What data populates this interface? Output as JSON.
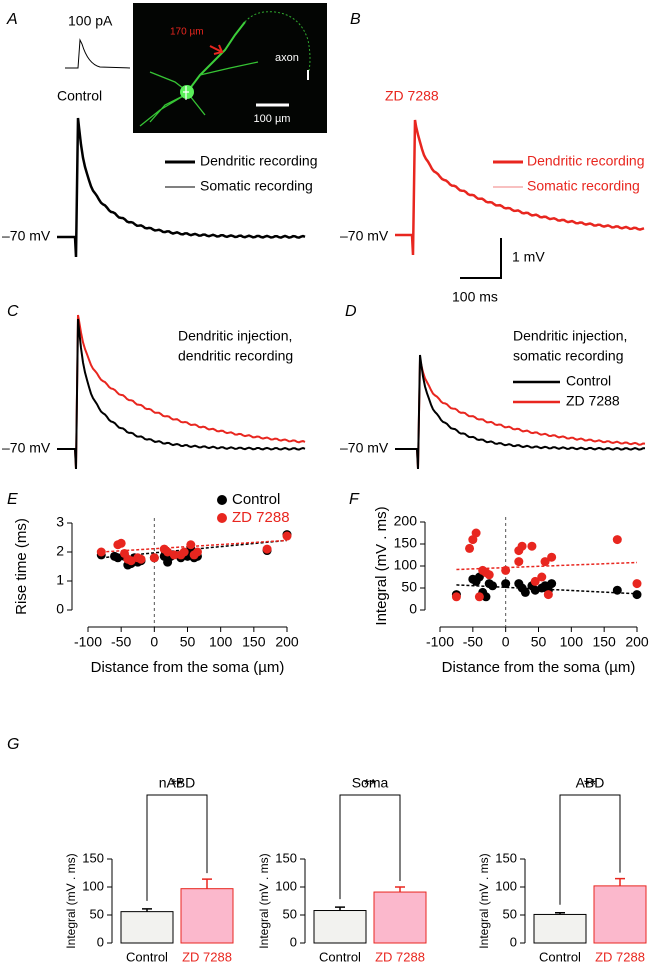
{
  "panel_labels": [
    "A",
    "B",
    "C",
    "D",
    "E",
    "F",
    "G"
  ],
  "traces": {
    "A": {
      "stimulus": "100 pA",
      "condition": "Control",
      "resting": "–70 mV",
      "legend": [
        "Dendritic recording",
        "Somatic recording"
      ],
      "image": {
        "distance": "170 µm",
        "axon": "axon",
        "scale": "100 µm"
      }
    },
    "B": {
      "condition": "ZD 7288",
      "resting": "–70 mV",
      "legend": [
        "Dendritic recording",
        "Somatic recording"
      ],
      "scale_y": "1 mV",
      "scale_x": "100 ms"
    },
    "C": {
      "title_lines": [
        "Dendritic injection,",
        "dendritic recording"
      ],
      "resting": "–70 mV"
    },
    "D": {
      "title_lines": [
        "Dendritic injection,",
        "somatic recording"
      ],
      "resting": "–70 mV",
      "legend": [
        "Control",
        "ZD 7288"
      ]
    }
  },
  "chart_data": [
    {
      "type": "scatter",
      "xlabel": "Distance from the soma (µm)",
      "ylabel": "Rise time (ms)",
      "xlim": [
        -100,
        200
      ],
      "xticks": [
        -100,
        -50,
        0,
        50,
        100,
        150,
        200
      ],
      "ylim": [
        0,
        3
      ],
      "yticks": [
        0,
        1,
        2,
        3
      ],
      "zero_line": true,
      "legend": "top-right",
      "series": [
        {
          "name": "Control",
          "color": "#000000",
          "x": [
            -80,
            -60,
            -55,
            -45,
            -40,
            -35,
            -30,
            -25,
            -20,
            0,
            15,
            20,
            25,
            40,
            50,
            55,
            60,
            65,
            170,
            200
          ],
          "values": [
            1.9,
            1.85,
            1.8,
            1.85,
            1.55,
            1.6,
            1.8,
            1.65,
            1.7,
            1.8,
            1.85,
            1.65,
            1.85,
            1.8,
            1.85,
            2.1,
            1.8,
            1.85,
            2.05,
            2.6
          ],
          "fit_x": [
            -80,
            200
          ],
          "fit_values": [
            1.8,
            2.4
          ]
        },
        {
          "name": "ZD 7288",
          "color": "#e8261f",
          "x": [
            -80,
            -55,
            -50,
            -45,
            -40,
            -35,
            -25,
            -20,
            0,
            15,
            20,
            30,
            40,
            45,
            55,
            60,
            65,
            170,
            200
          ],
          "values": [
            2.0,
            2.25,
            2.3,
            1.95,
            1.75,
            1.7,
            1.8,
            1.75,
            1.8,
            2.1,
            2.0,
            1.9,
            1.9,
            2.0,
            2.25,
            1.9,
            2.0,
            2.1,
            2.55
          ],
          "fit_x": [
            -80,
            200
          ],
          "fit_values": [
            2.0,
            2.4
          ]
        }
      ]
    },
    {
      "type": "scatter",
      "xlabel": "Distance from the soma (µm)",
      "ylabel": "Integral (mV . ms)",
      "xlim": [
        -100,
        200
      ],
      "xticks": [
        -100,
        -50,
        0,
        50,
        100,
        150,
        200
      ],
      "ylim": [
        0,
        200
      ],
      "yticks": [
        0,
        50,
        100,
        150,
        200
      ],
      "zero_line": true,
      "series": [
        {
          "name": "Control",
          "color": "#000000",
          "x": [
            -75,
            -50,
            -45,
            -40,
            -35,
            -30,
            -25,
            -20,
            0,
            20,
            25,
            30,
            40,
            45,
            55,
            60,
            65,
            70,
            170,
            200
          ],
          "values": [
            35,
            70,
            65,
            75,
            40,
            30,
            60,
            55,
            60,
            60,
            50,
            40,
            55,
            45,
            50,
            55,
            45,
            60,
            45,
            35
          ],
          "fit_x": [
            -75,
            200
          ],
          "fit_values": [
            57,
            37
          ]
        },
        {
          "name": "ZD 7288",
          "color": "#e8261f",
          "x": [
            -75,
            -55,
            -50,
            -45,
            -40,
            -35,
            -30,
            -25,
            0,
            20,
            20,
            25,
            40,
            45,
            55,
            60,
            65,
            70,
            170,
            200
          ],
          "values": [
            30,
            140,
            160,
            175,
            30,
            90,
            85,
            80,
            90,
            135,
            110,
            145,
            145,
            65,
            75,
            110,
            35,
            120,
            160,
            60
          ],
          "fit_x": [
            -75,
            200
          ],
          "fit_values": [
            92,
            108
          ]
        }
      ]
    },
    {
      "type": "bar",
      "title": "nABD",
      "ylabel": "Integral (mV . ms)",
      "categories": [
        "Control",
        "ZD 7288"
      ],
      "values": [
        56,
        97
      ],
      "errors": [
        5,
        17
      ],
      "colors": [
        "#f2f2ef",
        "#fbb8cc"
      ],
      "edge_colors": [
        "#000000",
        "#e8261f"
      ],
      "label_colors": [
        "#000000",
        "#e8261f"
      ],
      "ylim": [
        0,
        150
      ],
      "yticks": [
        0,
        50,
        100,
        150
      ],
      "annotation": "**"
    },
    {
      "type": "bar",
      "title": "Soma",
      "ylabel": "Integral (mV . ms)",
      "categories": [
        "Control",
        "ZD 7288"
      ],
      "values": [
        58,
        91
      ],
      "errors": [
        6,
        9
      ],
      "colors": [
        "#f2f2ef",
        "#fbb8cc"
      ],
      "edge_colors": [
        "#000000",
        "#e8261f"
      ],
      "label_colors": [
        "#000000",
        "#e8261f"
      ],
      "ylim": [
        0,
        150
      ],
      "yticks": [
        0,
        50,
        100,
        150
      ],
      "annotation": "**"
    },
    {
      "type": "bar",
      "title": "ABD",
      "ylabel": "Integral (mV . ms)",
      "categories": [
        "Control",
        "ZD 7288"
      ],
      "values": [
        51,
        102
      ],
      "errors": [
        3,
        13
      ],
      "colors": [
        "#f2f2ef",
        "#fbb8cc"
      ],
      "edge_colors": [
        "#000000",
        "#e8261f"
      ],
      "label_colors": [
        "#000000",
        "#e8261f"
      ],
      "ylim": [
        0,
        150
      ],
      "yticks": [
        0,
        50,
        100,
        150
      ],
      "annotation": "**"
    }
  ]
}
